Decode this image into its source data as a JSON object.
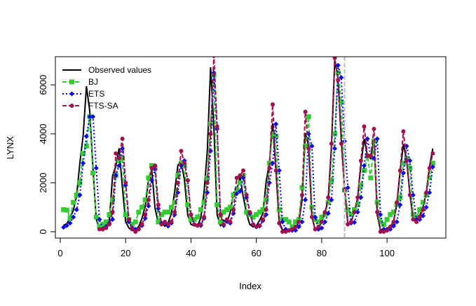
{
  "chart_data": {
    "type": "line",
    "title": "",
    "xlabel": "Index",
    "ylabel": "LYNX",
    "xlim": [
      -1.5,
      118
    ],
    "ylim": [
      -260,
      7150
    ],
    "xticks": [
      0,
      20,
      40,
      60,
      80,
      100
    ],
    "yticks": [
      0,
      2000,
      4000,
      6000
    ],
    "grid": false,
    "legend_position": "top-left",
    "series": [
      {
        "name": "Observed values",
        "color": "#000000",
        "style": "solid",
        "marker": "none",
        "x": [
          1,
          2,
          3,
          4,
          5,
          6,
          7,
          8,
          9,
          10,
          11,
          12,
          13,
          14,
          15,
          16,
          17,
          18,
          19,
          20,
          21,
          22,
          23,
          24,
          25,
          26,
          27,
          28,
          29,
          30,
          31,
          32,
          33,
          34,
          35,
          36,
          37,
          38,
          39,
          40,
          41,
          42,
          43,
          44,
          45,
          46,
          47,
          48,
          49,
          50,
          51,
          52,
          53,
          54,
          55,
          56,
          57,
          58,
          59,
          60,
          61,
          62,
          63,
          64,
          65,
          66,
          67,
          68,
          69,
          70,
          71,
          72,
          73,
          74,
          75,
          76,
          77,
          78,
          79,
          80,
          81,
          82,
          83,
          84,
          85,
          86,
          87,
          88,
          89,
          90,
          91,
          92,
          93,
          94,
          95,
          96,
          97,
          98,
          99,
          100,
          101,
          102,
          103,
          104,
          105,
          106,
          107,
          108,
          109,
          110,
          111,
          112,
          113,
          114
        ],
        "y": [
          269,
          321,
          585,
          871,
          1475,
          2821,
          3928,
          5943,
          4950,
          2577,
          523,
          98,
          184,
          279,
          409,
          2285,
          2685,
          3409,
          1824,
          409,
          151,
          45,
          68,
          213,
          546,
          1033,
          2129,
          2536,
          957,
          361,
          377,
          225,
          360,
          731,
          1638,
          2725,
          2871,
          2119,
          684,
          299,
          236,
          245,
          552,
          1623,
          3311,
          6721,
          4254,
          687,
          255,
          473,
          358,
          784,
          1594,
          1676,
          2251,
          1426,
          756,
          299,
          201,
          229,
          469,
          736,
          2042,
          2811,
          4431,
          2511,
          389,
          73,
          39,
          49,
          59,
          188,
          377,
          1292,
          4031,
          3495,
          587,
          105,
          153,
          387,
          758,
          1307,
          3465,
          6991,
          6313,
          3794,
          1836,
          345,
          382,
          808,
          1388,
          2713,
          3800,
          3091,
          2985,
          3790,
          674,
          81,
          80,
          108,
          229,
          399,
          1132,
          2432,
          3574,
          2935,
          1537,
          529,
          485,
          662,
          1000,
          1590,
          2657,
          3396
        ]
      },
      {
        "name": "BJ",
        "color": "#33cc33",
        "style": "dashed",
        "marker": "square",
        "x": [
          1,
          2,
          3,
          4,
          5,
          6,
          7,
          8,
          9,
          10,
          11,
          12,
          13,
          14,
          15,
          16,
          17,
          18,
          19,
          20,
          21,
          22,
          23,
          24,
          25,
          26,
          27,
          28,
          29,
          30,
          31,
          32,
          33,
          34,
          35,
          36,
          37,
          38,
          39,
          40,
          41,
          42,
          43,
          44,
          45,
          46,
          47,
          48,
          49,
          50,
          51,
          52,
          53,
          54,
          55,
          56,
          57,
          58,
          59,
          60,
          61,
          62,
          63,
          64,
          65,
          66,
          67,
          68,
          69,
          70,
          71,
          72,
          73,
          74,
          75,
          76,
          77,
          78,
          79,
          80,
          81,
          82,
          83,
          84,
          85,
          86,
          87,
          88,
          89,
          90,
          91,
          92,
          93,
          94,
          95,
          96,
          97,
          98,
          99,
          100,
          101,
          102,
          103,
          104,
          105,
          106,
          107,
          108,
          109,
          110,
          111,
          112,
          113,
          114
        ],
        "y": [
          900,
          880,
          550,
          1200,
          1500,
          2000,
          3200,
          3500,
          4700,
          2400,
          600,
          200,
          300,
          400,
          700,
          1300,
          2300,
          2900,
          3000,
          700,
          500,
          300,
          400,
          800,
          1000,
          1300,
          2200,
          2700,
          2600,
          400,
          700,
          800,
          800,
          1000,
          1200,
          2300,
          2800,
          2700,
          1100,
          500,
          500,
          600,
          900,
          1200,
          2200,
          4400,
          6400,
          1100,
          400,
          800,
          900,
          1000,
          1500,
          1700,
          2000,
          2300,
          800,
          700,
          600,
          700,
          800,
          900,
          1300,
          2800,
          4000,
          3900,
          900,
          500,
          500,
          400,
          200,
          400,
          500,
          1800,
          3500,
          4700,
          1000,
          500,
          400,
          600,
          700,
          1200,
          2100,
          4000,
          6500,
          5300,
          1700,
          900,
          700,
          900,
          1100,
          1900,
          2500,
          3100,
          2200,
          3700,
          1200,
          400,
          300,
          500,
          700,
          800,
          1100,
          1400,
          2800,
          3000,
          2600,
          700,
          600,
          900,
          1200,
          1500,
          2200,
          2800
        ]
      },
      {
        "name": "ETS",
        "color": "#0000ff",
        "style": "dotted",
        "marker": "diamond",
        "x": [
          1,
          2,
          3,
          4,
          5,
          6,
          7,
          8,
          9,
          10,
          11,
          12,
          13,
          14,
          15,
          16,
          17,
          18,
          19,
          20,
          21,
          22,
          23,
          24,
          25,
          26,
          27,
          28,
          29,
          30,
          31,
          32,
          33,
          34,
          35,
          36,
          37,
          38,
          39,
          40,
          41,
          42,
          43,
          44,
          45,
          46,
          47,
          48,
          49,
          50,
          51,
          52,
          53,
          54,
          55,
          56,
          57,
          58,
          59,
          60,
          61,
          62,
          63,
          64,
          65,
          66,
          67,
          68,
          69,
          70,
          71,
          72,
          73,
          74,
          75,
          76,
          77,
          78,
          79,
          80,
          81,
          82,
          83,
          84,
          85,
          86,
          87,
          88,
          89,
          90,
          91,
          92,
          93,
          94,
          95,
          96,
          97,
          98,
          99,
          100,
          101,
          102,
          103,
          104,
          105,
          106,
          107,
          108,
          109,
          110,
          111,
          112,
          113,
          114
        ],
        "y": [
          180,
          250,
          350,
          600,
          900,
          1500,
          2800,
          3900,
          4700,
          4700,
          2600,
          500,
          100,
          200,
          350,
          500,
          2300,
          2700,
          3400,
          1900,
          400,
          150,
          100,
          100,
          250,
          550,
          1050,
          2100,
          2550,
          950,
          350,
          380,
          230,
          350,
          700,
          1600,
          2700,
          2900,
          2100,
          700,
          300,
          250,
          250,
          550,
          1600,
          3300,
          6500,
          4200,
          700,
          250,
          450,
          350,
          750,
          1550,
          1650,
          2200,
          1400,
          750,
          300,
          200,
          230,
          450,
          700,
          2000,
          2800,
          4400,
          2500,
          400,
          100,
          50,
          50,
          60,
          200,
          400,
          1300,
          4000,
          3500,
          600,
          100,
          150,
          400,
          750,
          1300,
          3400,
          6800,
          6300,
          3700,
          1800,
          350,
          380,
          800,
          1400,
          2700,
          3800,
          3100,
          3000,
          3800,
          700,
          100,
          100,
          100,
          230,
          400,
          1100,
          2400,
          3500,
          2900,
          1500,
          500,
          500,
          650,
          1000,
          1600,
          2650
        ]
      },
      {
        "name": "FTS-SA",
        "color": "#a00e50",
        "style": "dashed",
        "marker": "triangle",
        "x": [
          12,
          13,
          14,
          15,
          16,
          17,
          18,
          19,
          20,
          21,
          22,
          23,
          24,
          25,
          26,
          27,
          28,
          29,
          30,
          31,
          32,
          33,
          34,
          35,
          36,
          37,
          38,
          39,
          40,
          41,
          42,
          43,
          44,
          45,
          46,
          47,
          48,
          49,
          50,
          51,
          52,
          53,
          54,
          55,
          56,
          57,
          58,
          59,
          60,
          61,
          62,
          63,
          64,
          65,
          66,
          67,
          68,
          69,
          70,
          71,
          72,
          73,
          74,
          75,
          76,
          77,
          78,
          79,
          80,
          81,
          82,
          83,
          84,
          85,
          86,
          87,
          88,
          89,
          90,
          91,
          92,
          93,
          94,
          95,
          96,
          97,
          98,
          99,
          100,
          101,
          102,
          103,
          104,
          105,
          106,
          107,
          108,
          109,
          110,
          111,
          112,
          113,
          114
        ],
        "y": [
          100,
          100,
          150,
          300,
          800,
          3200,
          3000,
          3800,
          2000,
          500,
          100,
          0,
          100,
          300,
          700,
          1300,
          2600,
          2700,
          1100,
          300,
          400,
          300,
          400,
          800,
          2000,
          3300,
          2800,
          2100,
          700,
          300,
          250,
          300,
          600,
          2000,
          4000,
          7200,
          4300,
          700,
          300,
          500,
          400,
          900,
          2200,
          2300,
          2500,
          1500,
          800,
          300,
          200,
          250,
          500,
          900,
          2600,
          5200,
          2500,
          350,
          0,
          0,
          50,
          100,
          200,
          400,
          1500,
          4900,
          3400,
          600,
          100,
          200,
          400,
          800,
          1400,
          3600,
          7100,
          6200,
          3600,
          1700,
          300,
          400,
          800,
          1400,
          2900,
          4300,
          3100,
          3100,
          4200,
          800,
          0,
          0,
          50,
          200,
          400,
          1200,
          2500,
          4100,
          2900,
          1500,
          500,
          400,
          600,
          900,
          1600,
          2600,
          3200
        ]
      }
    ],
    "annotations": [
      {
        "type": "vline",
        "x": 87,
        "color": "#bbbbbb",
        "style": "dashed"
      }
    ]
  }
}
